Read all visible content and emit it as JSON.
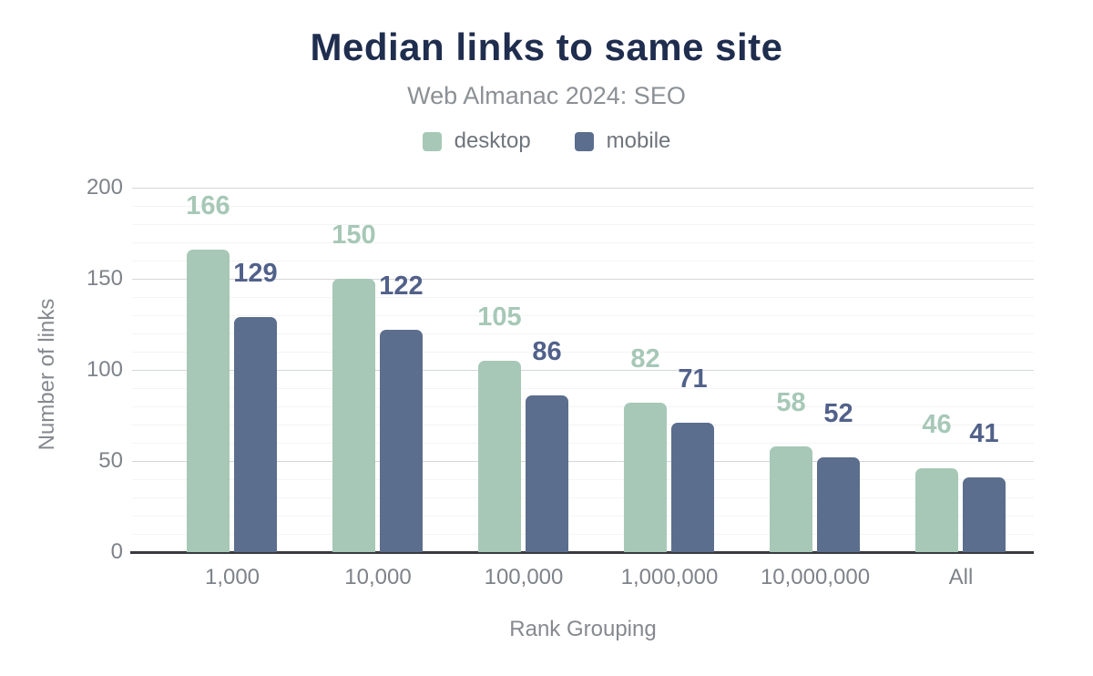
{
  "header": {
    "title": "Median links to same site",
    "subtitle": "Web Almanac 2024: SEO"
  },
  "chart_data": {
    "type": "bar",
    "title": "Median links to same site",
    "subtitle": "Web Almanac 2024: SEO",
    "categories": [
      "1,000",
      "10,000",
      "100,000",
      "1,000,000",
      "10,000,000",
      "All"
    ],
    "series": [
      {
        "name": "desktop",
        "color": "#a7c8b7",
        "label_color": "#a7c8b7",
        "values": [
          166,
          150,
          105,
          82,
          58,
          46
        ]
      },
      {
        "name": "mobile",
        "color": "#5c6e8d",
        "label_color": "#51618a",
        "values": [
          129,
          122,
          86,
          71,
          52,
          41
        ]
      }
    ],
    "xlabel": "Rank Grouping",
    "ylabel": "Number of links",
    "ylim": [
      0,
      200
    ],
    "yticks": [
      0,
      50,
      100,
      150,
      200
    ],
    "minor_grid_step": 10,
    "grid": true,
    "legend_position": "top"
  },
  "style": {
    "background": "#ffffff",
    "title_color": "#1f2d4e",
    "subtitle_color": "#8b9095",
    "axis_title_color": "#85898f",
    "tick_label_color": "#7e838a",
    "legend_text_color": "#6f757c",
    "grid_minor_color": "#f3f4f5",
    "grid_major_color": "#d4d7da",
    "baseline_color": "#393b40"
  }
}
